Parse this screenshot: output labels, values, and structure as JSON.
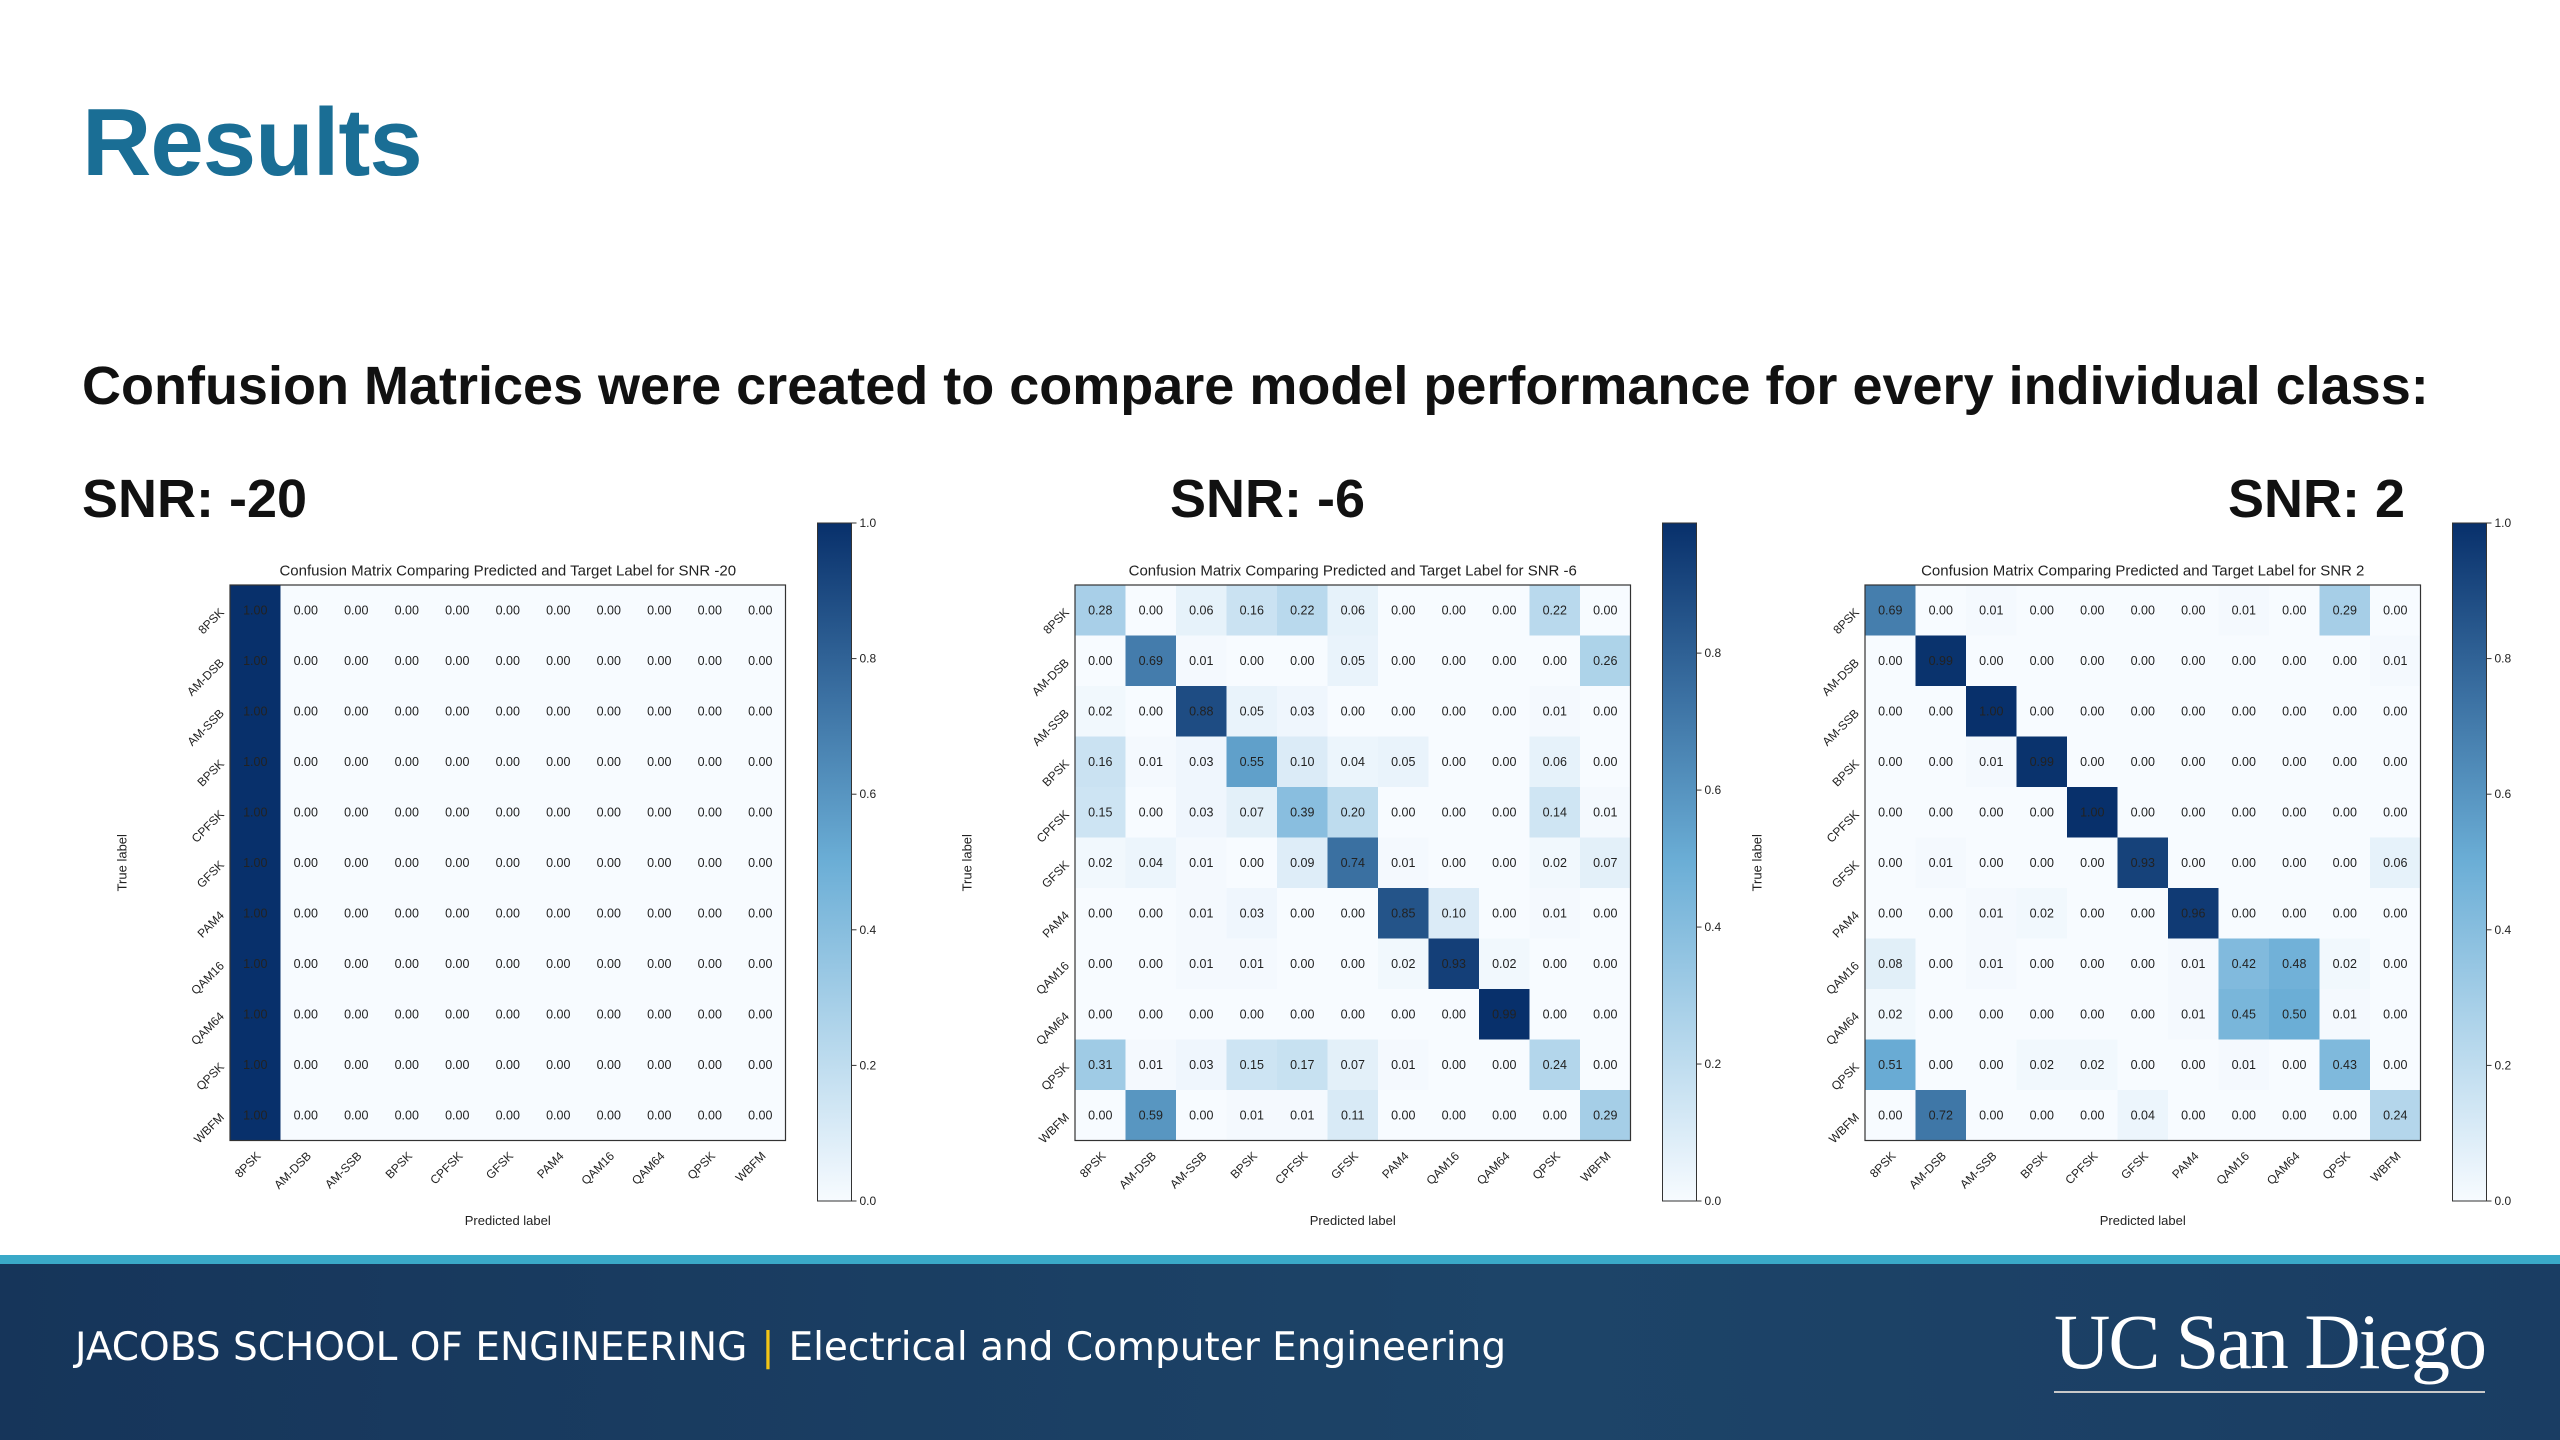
{
  "slide": {
    "title": "Results",
    "subtitle": "Confusion Matrices were created to compare model performance for every individual class:"
  },
  "footer": {
    "school": "JACOBS SCHOOL OF ENGINEERING",
    "separator": "|",
    "department": "Electrical and Computer Engineering",
    "logo": "UC San Diego"
  },
  "colors": {
    "title": "#1a6e95",
    "footer_bg": "#1d4468",
    "footer_stripe": "#3aa9c8",
    "footer_separator": "#f3c516",
    "cmap_low": "#f7fbff",
    "cmap_high": "#08306b"
  },
  "chart_data": [
    {
      "type": "heatmap",
      "panel_label": "SNR: -20",
      "title": "Confusion Matrix Comparing Predicted and Target Label for SNR -20",
      "xlabel": "Predicted label",
      "ylabel": "True label",
      "labels": [
        "8PSK",
        "AM-DSB",
        "AM-SSB",
        "BPSK",
        "CPFSK",
        "GFSK",
        "PAM4",
        "QAM16",
        "QAM64",
        "QPSK",
        "WBFM"
      ],
      "colorbar": {
        "vmin": 0.0,
        "vmax": 1.0,
        "ticks": [
          "0.0",
          "0.2",
          "0.4",
          "0.6",
          "0.8",
          "1.0"
        ]
      },
      "matrix": [
        [
          "1.00",
          "0.00",
          "0.00",
          "0.00",
          "0.00",
          "0.00",
          "0.00",
          "0.00",
          "0.00",
          "0.00",
          "0.00"
        ],
        [
          "1.00",
          "0.00",
          "0.00",
          "0.00",
          "0.00",
          "0.00",
          "0.00",
          "0.00",
          "0.00",
          "0.00",
          "0.00"
        ],
        [
          "1.00",
          "0.00",
          "0.00",
          "0.00",
          "0.00",
          "0.00",
          "0.00",
          "0.00",
          "0.00",
          "0.00",
          "0.00"
        ],
        [
          "1.00",
          "0.00",
          "0.00",
          "0.00",
          "0.00",
          "0.00",
          "0.00",
          "0.00",
          "0.00",
          "0.00",
          "0.00"
        ],
        [
          "1.00",
          "0.00",
          "0.00",
          "0.00",
          "0.00",
          "0.00",
          "0.00",
          "0.00",
          "0.00",
          "0.00",
          "0.00"
        ],
        [
          "1.00",
          "0.00",
          "0.00",
          "0.00",
          "0.00",
          "0.00",
          "0.00",
          "0.00",
          "0.00",
          "0.00",
          "0.00"
        ],
        [
          "1.00",
          "0.00",
          "0.00",
          "0.00",
          "0.00",
          "0.00",
          "0.00",
          "0.00",
          "0.00",
          "0.00",
          "0.00"
        ],
        [
          "1.00",
          "0.00",
          "0.00",
          "0.00",
          "0.00",
          "0.00",
          "0.00",
          "0.00",
          "0.00",
          "0.00",
          "0.00"
        ],
        [
          "1.00",
          "0.00",
          "0.00",
          "0.00",
          "0.00",
          "0.00",
          "0.00",
          "0.00",
          "0.00",
          "0.00",
          "0.00"
        ],
        [
          "1.00",
          "0.00",
          "0.00",
          "0.00",
          "0.00",
          "0.00",
          "0.00",
          "0.00",
          "0.00",
          "0.00",
          "0.00"
        ],
        [
          "1.00",
          "0.00",
          "0.00",
          "0.00",
          "0.00",
          "0.00",
          "0.00",
          "0.00",
          "0.00",
          "0.00",
          "0.00"
        ]
      ]
    },
    {
      "type": "heatmap",
      "panel_label": "SNR: -6",
      "title": "Confusion Matrix Comparing Predicted and Target Label for SNR -6",
      "xlabel": "Predicted label",
      "ylabel": "True label",
      "labels": [
        "8PSK",
        "AM-DSB",
        "AM-SSB",
        "BPSK",
        "CPFSK",
        "GFSK",
        "PAM4",
        "QAM16",
        "QAM64",
        "QPSK",
        "WBFM"
      ],
      "colorbar": {
        "vmin": 0.0,
        "vmax": 0.99,
        "ticks": [
          "0.0",
          "0.2",
          "0.4",
          "0.6",
          "0.8"
        ]
      },
      "matrix": [
        [
          "0.28",
          "0.00",
          "0.06",
          "0.16",
          "0.22",
          "0.06",
          "0.00",
          "0.00",
          "0.00",
          "0.22",
          "0.00"
        ],
        [
          "0.00",
          "0.69",
          "0.01",
          "0.00",
          "0.00",
          "0.05",
          "0.00",
          "0.00",
          "0.00",
          "0.00",
          "0.26"
        ],
        [
          "0.02",
          "0.00",
          "0.88",
          "0.05",
          "0.03",
          "0.00",
          "0.00",
          "0.00",
          "0.00",
          "0.01",
          "0.00"
        ],
        [
          "0.16",
          "0.01",
          "0.03",
          "0.55",
          "0.10",
          "0.04",
          "0.05",
          "0.00",
          "0.00",
          "0.06",
          "0.00"
        ],
        [
          "0.15",
          "0.00",
          "0.03",
          "0.07",
          "0.39",
          "0.20",
          "0.00",
          "0.00",
          "0.00",
          "0.14",
          "0.01"
        ],
        [
          "0.02",
          "0.04",
          "0.01",
          "0.00",
          "0.09",
          "0.74",
          "0.01",
          "0.00",
          "0.00",
          "0.02",
          "0.07"
        ],
        [
          "0.00",
          "0.00",
          "0.01",
          "0.03",
          "0.00",
          "0.00",
          "0.85",
          "0.10",
          "0.00",
          "0.01",
          "0.00"
        ],
        [
          "0.00",
          "0.00",
          "0.01",
          "0.01",
          "0.00",
          "0.00",
          "0.02",
          "0.93",
          "0.02",
          "0.00",
          "0.00"
        ],
        [
          "0.00",
          "0.00",
          "0.00",
          "0.00",
          "0.00",
          "0.00",
          "0.00",
          "0.00",
          "0.99",
          "0.00",
          "0.00"
        ],
        [
          "0.31",
          "0.01",
          "0.03",
          "0.15",
          "0.17",
          "0.07",
          "0.01",
          "0.00",
          "0.00",
          "0.24",
          "0.00"
        ],
        [
          "0.00",
          "0.59",
          "0.00",
          "0.01",
          "0.01",
          "0.11",
          "0.00",
          "0.00",
          "0.00",
          "0.00",
          "0.29"
        ]
      ]
    },
    {
      "type": "heatmap",
      "panel_label": "SNR: 2",
      "title": "Confusion Matrix Comparing Predicted and Target Label for SNR 2",
      "xlabel": "Predicted label",
      "ylabel": "True label",
      "labels": [
        "8PSK",
        "AM-DSB",
        "AM-SSB",
        "BPSK",
        "CPFSK",
        "GFSK",
        "PAM4",
        "QAM16",
        "QAM64",
        "QPSK",
        "WBFM"
      ],
      "colorbar": {
        "vmin": 0.0,
        "vmax": 1.0,
        "ticks": [
          "0.0",
          "0.2",
          "0.4",
          "0.6",
          "0.8",
          "1.0"
        ]
      },
      "matrix": [
        [
          "0.69",
          "0.00",
          "0.01",
          "0.00",
          "0.00",
          "0.00",
          "0.00",
          "0.01",
          "0.00",
          "0.29",
          "0.00"
        ],
        [
          "0.00",
          "0.99",
          "0.00",
          "0.00",
          "0.00",
          "0.00",
          "0.00",
          "0.00",
          "0.00",
          "0.00",
          "0.01"
        ],
        [
          "0.00",
          "0.00",
          "1.00",
          "0.00",
          "0.00",
          "0.00",
          "0.00",
          "0.00",
          "0.00",
          "0.00",
          "0.00"
        ],
        [
          "0.00",
          "0.00",
          "0.01",
          "0.99",
          "0.00",
          "0.00",
          "0.00",
          "0.00",
          "0.00",
          "0.00",
          "0.00"
        ],
        [
          "0.00",
          "0.00",
          "0.00",
          "0.00",
          "1.00",
          "0.00",
          "0.00",
          "0.00",
          "0.00",
          "0.00",
          "0.00"
        ],
        [
          "0.00",
          "0.01",
          "0.00",
          "0.00",
          "0.00",
          "0.93",
          "0.00",
          "0.00",
          "0.00",
          "0.00",
          "0.06"
        ],
        [
          "0.00",
          "0.00",
          "0.01",
          "0.02",
          "0.00",
          "0.00",
          "0.96",
          "0.00",
          "0.00",
          "0.00",
          "0.00"
        ],
        [
          "0.08",
          "0.00",
          "0.01",
          "0.00",
          "0.00",
          "0.00",
          "0.01",
          "0.42",
          "0.48",
          "0.02",
          "0.00"
        ],
        [
          "0.02",
          "0.00",
          "0.00",
          "0.00",
          "0.00",
          "0.00",
          "0.01",
          "0.45",
          "0.50",
          "0.01",
          "0.00"
        ],
        [
          "0.51",
          "0.00",
          "0.00",
          "0.02",
          "0.02",
          "0.00",
          "0.00",
          "0.01",
          "0.00",
          "0.43",
          "0.00"
        ],
        [
          "0.00",
          "0.72",
          "0.00",
          "0.00",
          "0.00",
          "0.04",
          "0.00",
          "0.00",
          "0.00",
          "0.00",
          "0.24"
        ]
      ]
    }
  ]
}
